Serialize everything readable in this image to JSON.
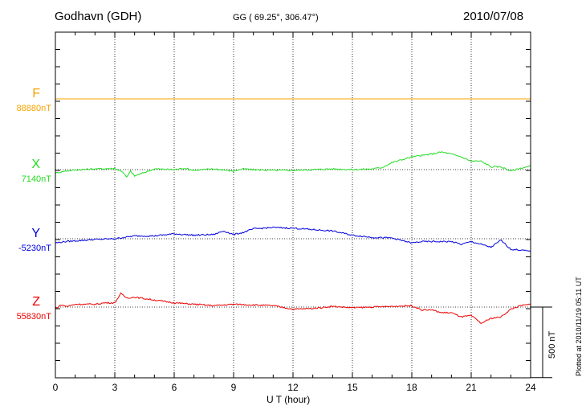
{
  "header": {
    "station": "Godhavn (GDH)",
    "coords": "GG ( 69.25°, 306.47°)",
    "date": "2010/07/08"
  },
  "plotted_note": "Plotted at 2010/11/19 05:11 UT",
  "scale_bar_label": "500 nT",
  "chart_data": {
    "type": "line",
    "xlabel": "U T (hour)",
    "xlim": [
      0,
      24
    ],
    "x_ticks": [
      "0",
      "3",
      "6",
      "9",
      "12",
      "15",
      "18",
      "21",
      "24"
    ],
    "scale_nT": 500,
    "series": [
      {
        "name": "F",
        "baseline": "88880nT",
        "color": "#f5a300",
        "x": [
          0,
          24
        ],
        "y": [
          0,
          0
        ]
      },
      {
        "name": "X",
        "baseline": "7140nT",
        "color": "#22dd22",
        "x": [
          0,
          0.5,
          1,
          2,
          3,
          3.4,
          3.6,
          3.8,
          4,
          5,
          6,
          6.5,
          7,
          8,
          9,
          9.5,
          10,
          11,
          12,
          13,
          14,
          15,
          16,
          16.5,
          17,
          17.5,
          18,
          18.5,
          19,
          19.5,
          20,
          20.5,
          21,
          21.5,
          22,
          22.5,
          23,
          23.5,
          24
        ],
        "y": [
          -25,
          -10,
          -2,
          5,
          8,
          -15,
          -55,
          -10,
          -45,
          5,
          0,
          10,
          -5,
          5,
          -10,
          5,
          0,
          -5,
          -5,
          0,
          5,
          0,
          5,
          15,
          50,
          70,
          90,
          100,
          110,
          125,
          110,
          90,
          60,
          60,
          20,
          20,
          -10,
          10,
          25
        ]
      },
      {
        "name": "Y",
        "baseline": "-5230nT",
        "color": "#0000dd",
        "x": [
          0,
          0.5,
          1,
          2,
          3,
          4,
          5,
          6,
          7,
          8,
          8.5,
          9,
          9.5,
          10,
          11,
          12,
          13,
          14,
          15,
          16,
          17,
          18,
          18.5,
          19,
          20,
          20.5,
          21,
          22,
          22.5,
          23,
          23.5,
          24
        ],
        "y": [
          -30,
          -20,
          -15,
          -5,
          0,
          20,
          20,
          35,
          25,
          30,
          55,
          30,
          45,
          70,
          80,
          75,
          65,
          55,
          25,
          10,
          5,
          -30,
          -20,
          -20,
          -20,
          -40,
          -20,
          -60,
          -10,
          -75,
          -80,
          -90
        ]
      },
      {
        "name": "Z",
        "baseline": "55830nT",
        "color": "#ee0000",
        "x": [
          0,
          0.3,
          0.6,
          1,
          2,
          2.5,
          3,
          3.3,
          3.6,
          4,
          4.5,
          5,
          6,
          7,
          8,
          9,
          10,
          11,
          12,
          13,
          14,
          15,
          16,
          17,
          18,
          18.5,
          19,
          19.5,
          20,
          20.5,
          21,
          21.5,
          22,
          22.5,
          23,
          23.5,
          24
        ],
        "y": [
          -10,
          15,
          5,
          20,
          20,
          30,
          30,
          95,
          65,
          70,
          60,
          50,
          30,
          20,
          10,
          20,
          15,
          10,
          -15,
          -10,
          5,
          -5,
          0,
          5,
          10,
          -20,
          -20,
          -40,
          -40,
          -70,
          -60,
          -115,
          -80,
          -70,
          -15,
          10,
          20
        ]
      }
    ]
  }
}
